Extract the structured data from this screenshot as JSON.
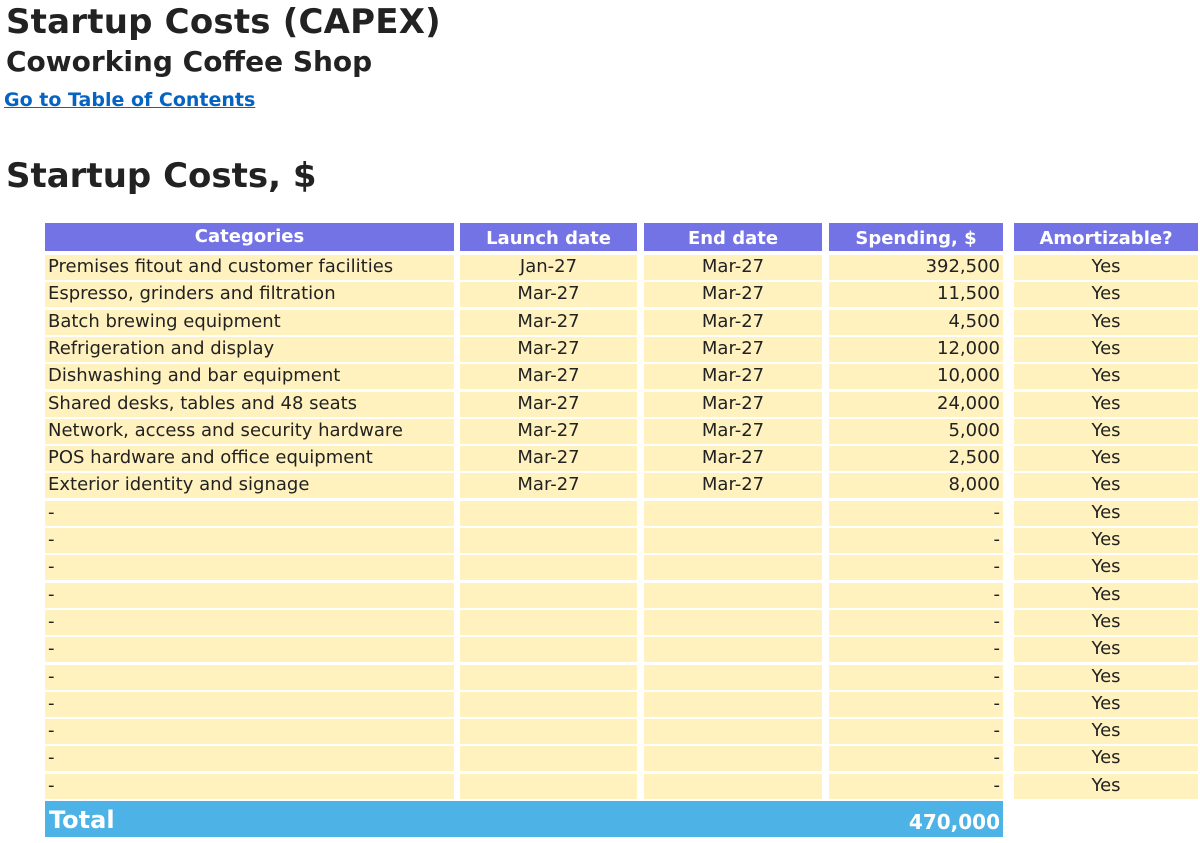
{
  "header": {
    "title": "Startup Costs (CAPEX)",
    "subtitle": "Coworking Coffee Shop",
    "toc_link": "Go to Table of Contents"
  },
  "section": {
    "title": "Startup Costs, $"
  },
  "table": {
    "columns": [
      "Categories",
      "Launch date",
      "End date",
      "Spending, $",
      "Amortizable?"
    ],
    "rows": [
      {
        "category": "Premises fitout and customer facilities",
        "launch": "Jan-27",
        "end": "Mar-27",
        "spending": "392,500",
        "amortizable": "Yes"
      },
      {
        "category": "Espresso, grinders and filtration",
        "launch": "Mar-27",
        "end": "Mar-27",
        "spending": "11,500",
        "amortizable": "Yes"
      },
      {
        "category": "Batch brewing equipment",
        "launch": "Mar-27",
        "end": "Mar-27",
        "spending": "4,500",
        "amortizable": "Yes"
      },
      {
        "category": "Refrigeration and display",
        "launch": "Mar-27",
        "end": "Mar-27",
        "spending": "12,000",
        "amortizable": "Yes"
      },
      {
        "category": "Dishwashing and bar equipment",
        "launch": "Mar-27",
        "end": "Mar-27",
        "spending": "10,000",
        "amortizable": "Yes"
      },
      {
        "category": "Shared desks, tables and 48 seats",
        "launch": "Mar-27",
        "end": "Mar-27",
        "spending": "24,000",
        "amortizable": "Yes"
      },
      {
        "category": "Network, access and security hardware",
        "launch": "Mar-27",
        "end": "Mar-27",
        "spending": "5,000",
        "amortizable": "Yes"
      },
      {
        "category": "POS hardware and office equipment",
        "launch": "Mar-27",
        "end": "Mar-27",
        "spending": "2,500",
        "amortizable": "Yes"
      },
      {
        "category": "Exterior identity and signage",
        "launch": "Mar-27",
        "end": "Mar-27",
        "spending": "8,000",
        "amortizable": "Yes"
      },
      {
        "category": "-",
        "launch": "",
        "end": "",
        "spending": "-",
        "amortizable": "Yes"
      },
      {
        "category": "-",
        "launch": "",
        "end": "",
        "spending": "-",
        "amortizable": "Yes"
      },
      {
        "category": "-",
        "launch": "",
        "end": "",
        "spending": "-",
        "amortizable": "Yes"
      },
      {
        "category": "-",
        "launch": "",
        "end": "",
        "spending": "-",
        "amortizable": "Yes"
      },
      {
        "category": "-",
        "launch": "",
        "end": "",
        "spending": "-",
        "amortizable": "Yes"
      },
      {
        "category": "-",
        "launch": "",
        "end": "",
        "spending": "-",
        "amortizable": "Yes"
      },
      {
        "category": "-",
        "launch": "",
        "end": "",
        "spending": "-",
        "amortizable": "Yes"
      },
      {
        "category": "-",
        "launch": "",
        "end": "",
        "spending": "-",
        "amortizable": "Yes"
      },
      {
        "category": "-",
        "launch": "",
        "end": "",
        "spending": "-",
        "amortizable": "Yes"
      },
      {
        "category": "-",
        "launch": "",
        "end": "",
        "spending": "-",
        "amortizable": "Yes"
      },
      {
        "category": "-",
        "launch": "",
        "end": "",
        "spending": "-",
        "amortizable": "Yes"
      }
    ],
    "total": {
      "label": "Total",
      "value": "470,000"
    }
  },
  "colors": {
    "header_bg": "#7373e6",
    "cell_bg": "#fff2bf",
    "total_bg": "#4db3e6",
    "link": "#0563c1"
  }
}
